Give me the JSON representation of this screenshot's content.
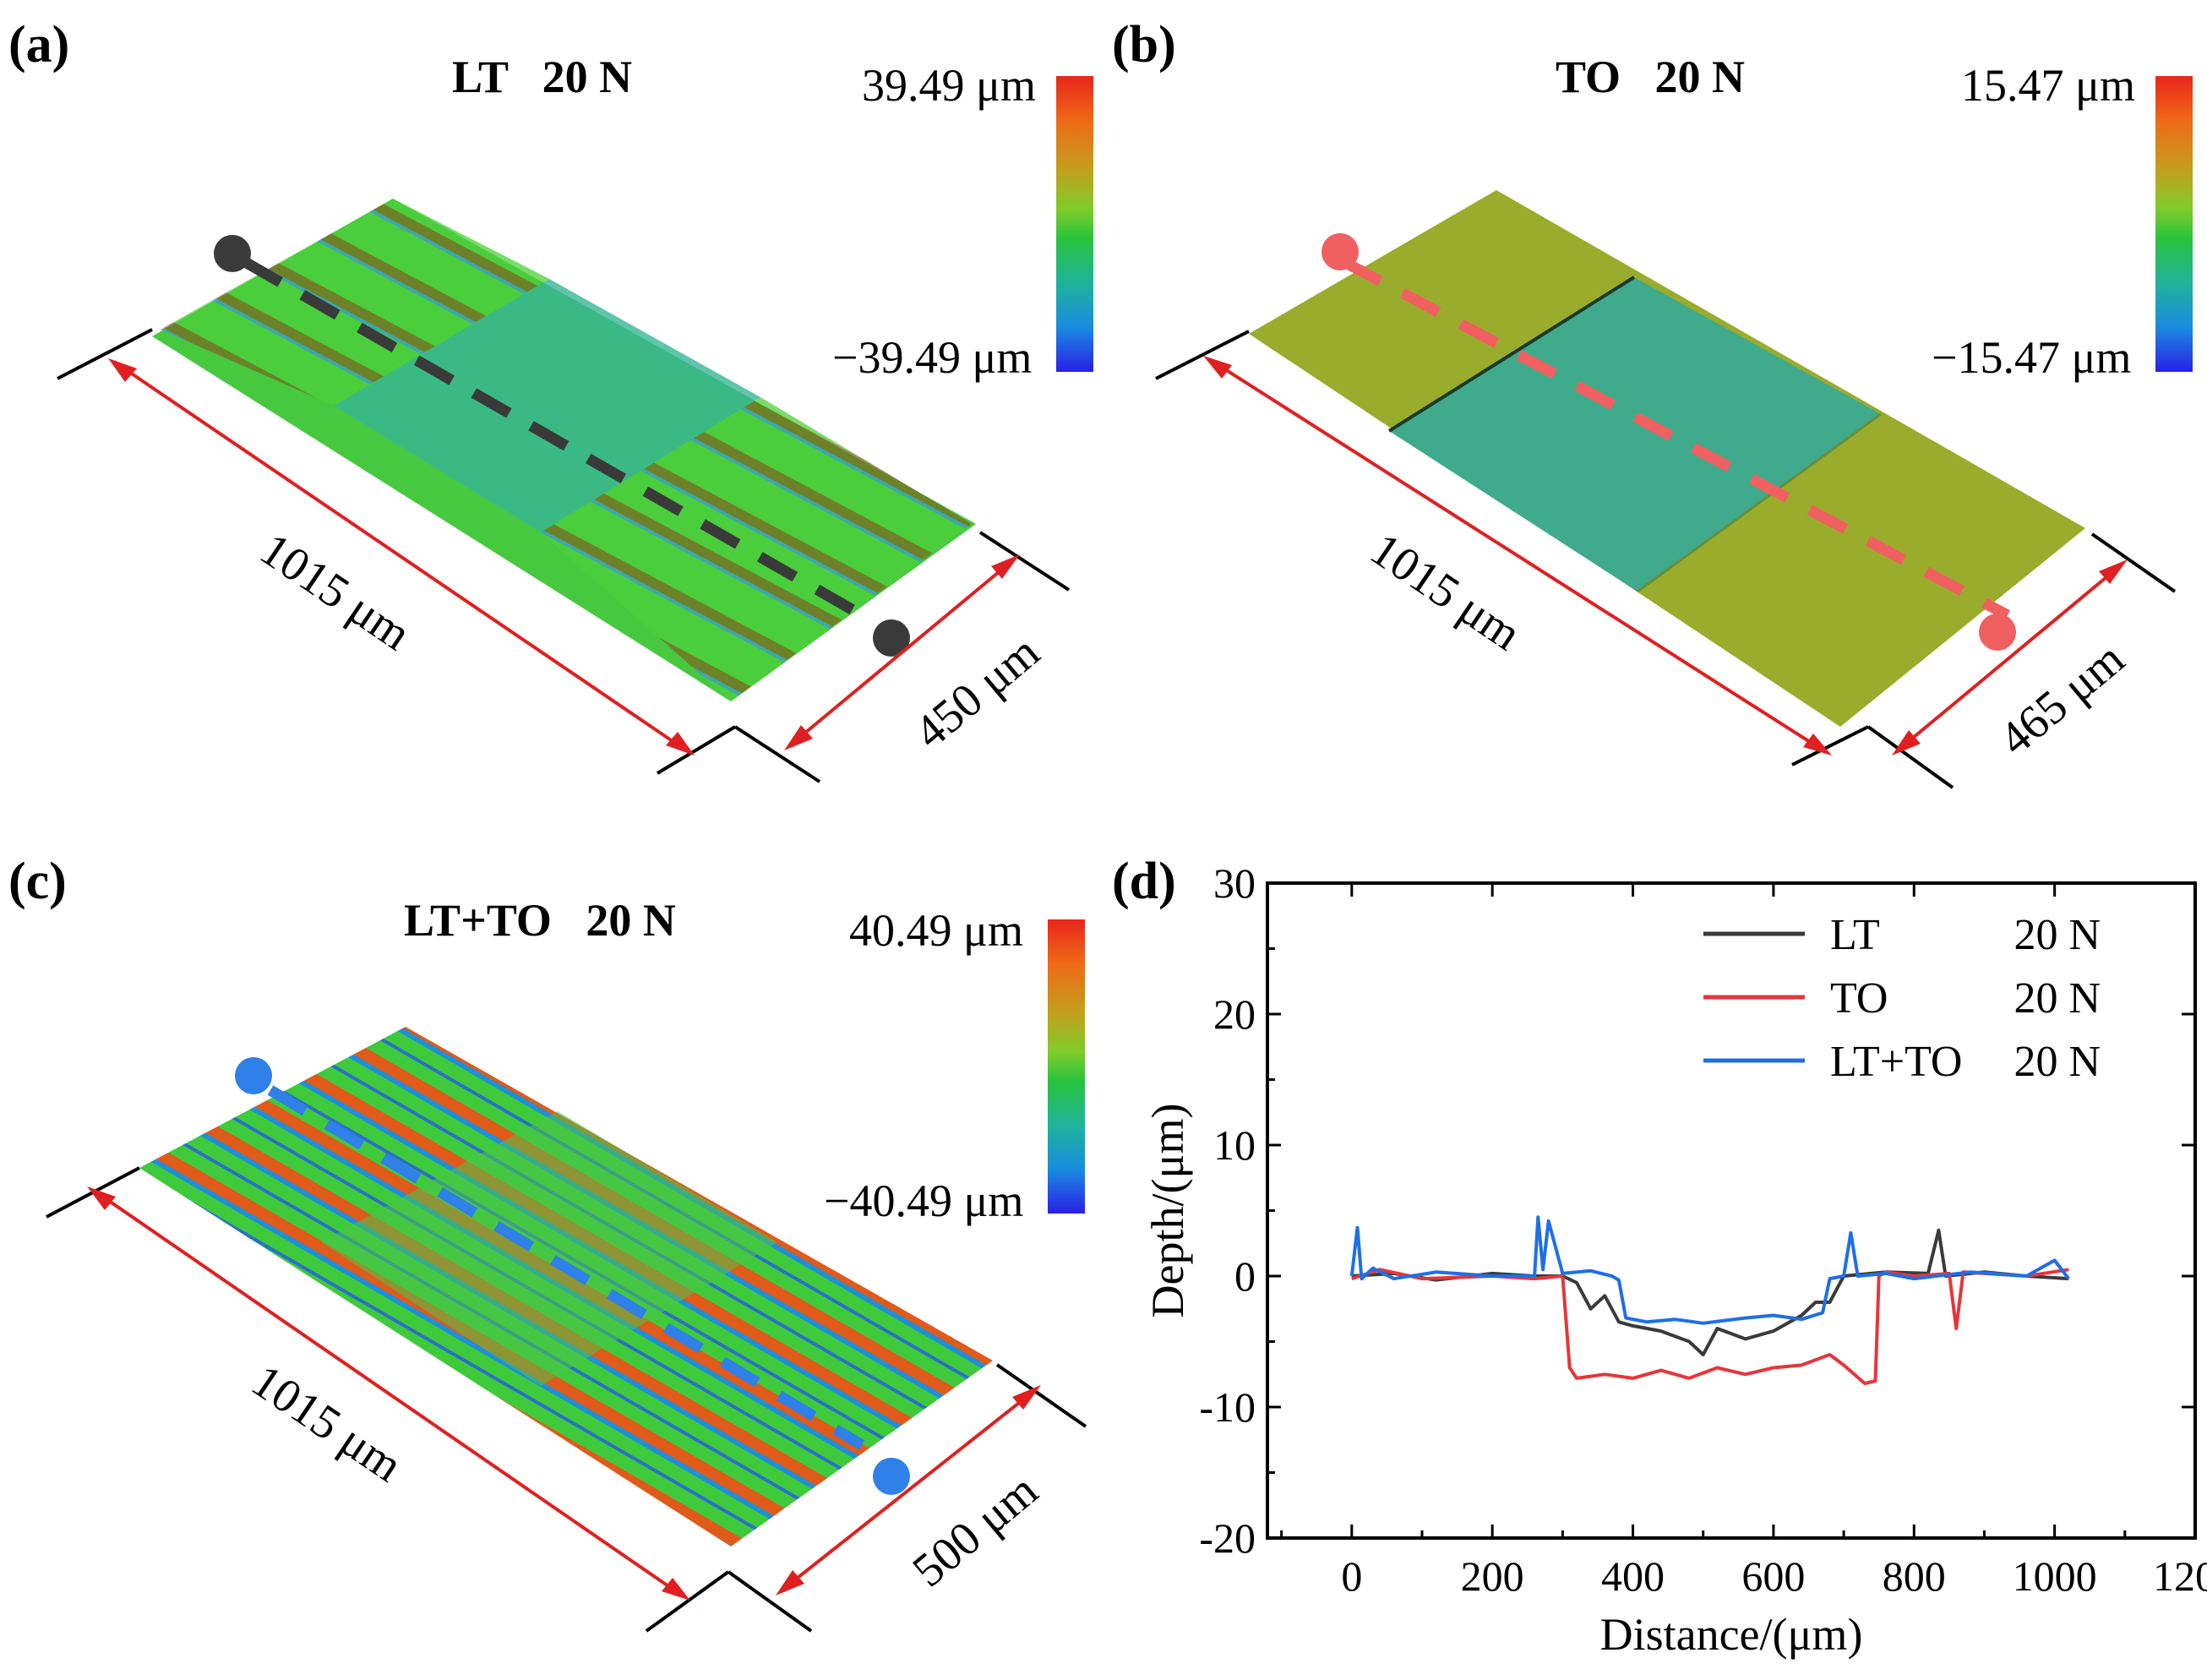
{
  "panels": {
    "a": {
      "label": "(a)",
      "title": "LT   20 N",
      "cbar_max": "39.49 μm",
      "cbar_min": "−39.49 μm",
      "length": "1015 μm",
      "width": "450 μm",
      "line_color": "#3a3a3a"
    },
    "b": {
      "label": "(b)",
      "title": "TO   20 N",
      "cbar_max": "15.47 μm",
      "cbar_min": "−15.47 μm",
      "length": "1015 μm",
      "width": "465 μm",
      "line_color": "#f06060"
    },
    "c": {
      "label": "(c)",
      "title": "LT+TO   20 N",
      "cbar_max": "40.49 μm",
      "cbar_min": "−40.49 μm",
      "length": "1015 μm",
      "width": "500 μm",
      "line_color": "#2f80e8"
    },
    "d": {
      "label": "(d)"
    }
  },
  "chart_data": {
    "type": "line",
    "xlabel": "Distance/(μm)",
    "ylabel": "Depth/(μm)",
    "xlim": [
      -120,
      1200
    ],
    "ylim": [
      -20,
      30
    ],
    "xticks": [
      0,
      200,
      400,
      600,
      800,
      1000,
      1200
    ],
    "yticks": [
      -20,
      -10,
      0,
      10,
      20,
      30
    ],
    "grid": false,
    "legend_position": "top-right",
    "series": [
      {
        "name": "LT",
        "load": "20 N",
        "color": "#3a3a3a",
        "x": [
          0,
          60,
          120,
          200,
          260,
          300,
          320,
          340,
          360,
          380,
          400,
          440,
          480,
          500,
          520,
          560,
          600,
          640,
          660,
          680,
          700,
          760,
          820,
          835,
          845,
          900,
          960,
          1020
        ],
        "y": [
          0,
          0.2,
          -0.3,
          0.2,
          0,
          0,
          -0.5,
          -2.5,
          -1.5,
          -3.5,
          -3.8,
          -4.2,
          -5,
          -6,
          -4,
          -4.8,
          -4.2,
          -3,
          -2,
          -2,
          0,
          0.3,
          0.2,
          3.5,
          0,
          0.3,
          0,
          -0.2
        ]
      },
      {
        "name": "TO",
        "load": "20 N",
        "color": "#e8353a",
        "x": [
          0,
          40,
          100,
          200,
          260,
          300,
          310,
          320,
          360,
          400,
          440,
          480,
          520,
          560,
          600,
          640,
          680,
          700,
          730,
          745,
          750,
          760,
          800,
          850,
          860,
          870,
          900,
          960,
          1020
        ],
        "y": [
          -0.2,
          0.5,
          -0.2,
          0,
          -0.2,
          0,
          -7,
          -7.8,
          -7.5,
          -7.8,
          -7.2,
          -7.8,
          -7.0,
          -7.5,
          -7.0,
          -6.8,
          -6.0,
          -6.8,
          -8.2,
          -8.0,
          0,
          0.3,
          0,
          0.2,
          -4,
          0.3,
          0.2,
          0,
          0.5
        ]
      },
      {
        "name": "LT+TO",
        "load": "20 N",
        "color": "#1f6fe6",
        "x": [
          0,
          8,
          14,
          30,
          60,
          120,
          200,
          260,
          265,
          272,
          280,
          300,
          340,
          370,
          380,
          390,
          420,
          460,
          500,
          560,
          600,
          640,
          670,
          680,
          700,
          710,
          720,
          760,
          800,
          880,
          960,
          1000,
          1020
        ],
        "y": [
          0,
          3.7,
          -0.2,
          0.6,
          -0.2,
          0.3,
          0,
          0,
          4.5,
          0.5,
          4.2,
          0.2,
          0.4,
          0,
          -0.3,
          -3.2,
          -3.5,
          -3.3,
          -3.6,
          -3.2,
          -3.0,
          -3.3,
          -2.8,
          -0.2,
          0,
          3.3,
          0,
          0.2,
          -0.2,
          0.3,
          0,
          1.2,
          -0.2
        ]
      }
    ]
  }
}
